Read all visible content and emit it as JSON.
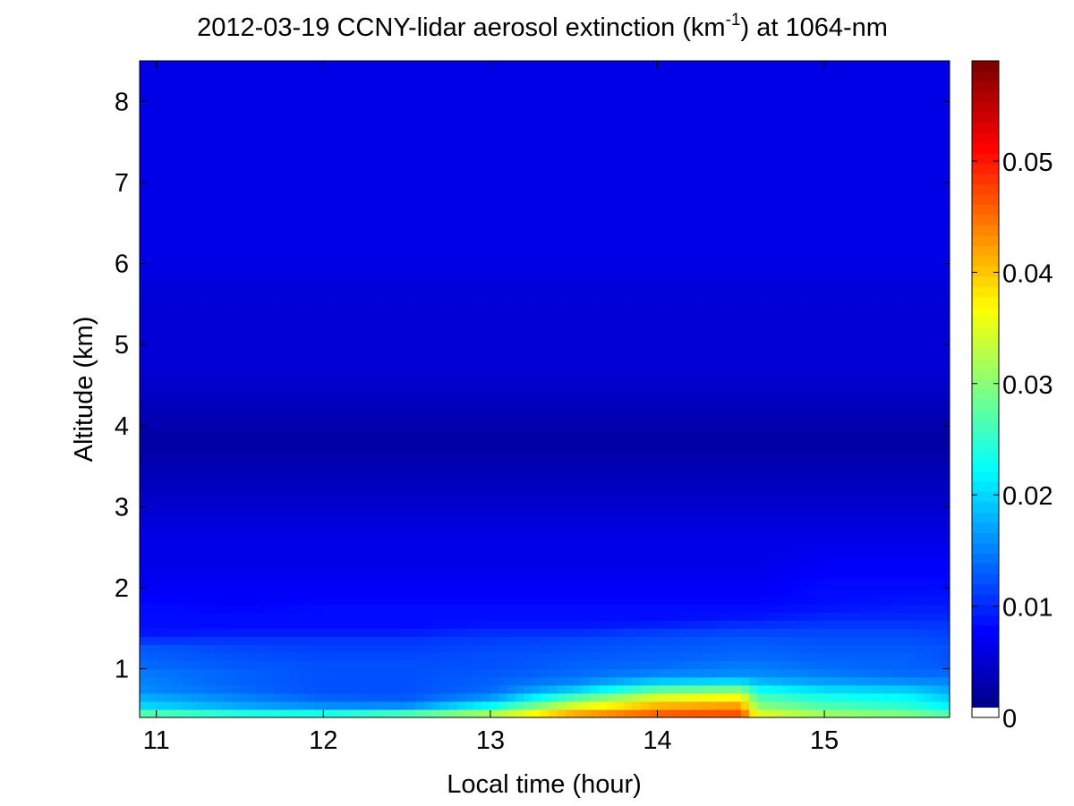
{
  "chart_data": {
    "type": "heatmap",
    "title_main": "2012-03-19 CCNY-lidar aerosol extinction (km",
    "title_sup": "-1",
    "title_end": ") at 1064-nm",
    "xlabel": "Local time (hour)",
    "ylabel": "Altitude (km)",
    "xlim": [
      10.9,
      15.75
    ],
    "ylim": [
      0.4,
      8.5
    ],
    "x_ticks": [
      11,
      12,
      13,
      14,
      15
    ],
    "y_ticks": [
      1,
      2,
      3,
      4,
      5,
      6,
      7,
      8
    ],
    "colorbar": {
      "colormap": "jet",
      "range": [
        0,
        0.059
      ],
      "ticks": [
        0,
        0.01,
        0.02,
        0.03,
        0.04,
        0.05
      ],
      "tick_labels": [
        "0",
        "0.01",
        "0.02",
        "0.03",
        "0.04",
        "0.05"
      ]
    },
    "profile_altitudes_km": [
      0.4,
      0.5,
      0.6,
      0.7,
      0.8,
      0.9,
      1.0,
      1.1,
      1.2,
      1.3,
      1.4,
      1.5,
      1.6,
      1.7,
      1.8,
      1.9,
      2.0,
      2.3,
      2.6,
      2.9,
      3.2,
      3.5,
      3.8,
      4.1,
      4.4,
      4.7,
      5.0,
      5.5,
      6.0,
      6.5,
      7.0,
      7.5,
      8.0,
      8.5
    ],
    "profile_times_hour": [
      10.9,
      11.5,
      12.0,
      12.5,
      13.0,
      13.5,
      14.0,
      14.5,
      14.6,
      15.0,
      15.5,
      15.75
    ],
    "extinction_km-1": [
      [
        0.033,
        0.03,
        0.03,
        0.034,
        0.037,
        0.045,
        0.048,
        0.049,
        0.038,
        0.034,
        0.032,
        0.03
      ],
      [
        0.021,
        0.018,
        0.017,
        0.018,
        0.026,
        0.038,
        0.044,
        0.045,
        0.032,
        0.028,
        0.026,
        0.023
      ],
      [
        0.019,
        0.016,
        0.014,
        0.013,
        0.018,
        0.031,
        0.038,
        0.04,
        0.028,
        0.025,
        0.023,
        0.02
      ],
      [
        0.016,
        0.014,
        0.012,
        0.012,
        0.014,
        0.022,
        0.032,
        0.034,
        0.025,
        0.022,
        0.021,
        0.018
      ],
      [
        0.015,
        0.013,
        0.012,
        0.012,
        0.013,
        0.016,
        0.022,
        0.024,
        0.02,
        0.018,
        0.017,
        0.016
      ],
      [
        0.015,
        0.013,
        0.012,
        0.012,
        0.013,
        0.014,
        0.016,
        0.016,
        0.016,
        0.015,
        0.014,
        0.014
      ],
      [
        0.014,
        0.013,
        0.012,
        0.012,
        0.012,
        0.013,
        0.014,
        0.015,
        0.015,
        0.014,
        0.013,
        0.013
      ],
      [
        0.013,
        0.012,
        0.012,
        0.012,
        0.012,
        0.013,
        0.013,
        0.014,
        0.014,
        0.013,
        0.013,
        0.012
      ],
      [
        0.013,
        0.012,
        0.011,
        0.011,
        0.012,
        0.012,
        0.013,
        0.013,
        0.013,
        0.013,
        0.013,
        0.012
      ],
      [
        0.012,
        0.011,
        0.011,
        0.011,
        0.011,
        0.012,
        0.012,
        0.013,
        0.013,
        0.012,
        0.012,
        0.012
      ],
      [
        0.009,
        0.01,
        0.01,
        0.01,
        0.011,
        0.011,
        0.012,
        0.012,
        0.012,
        0.012,
        0.012,
        0.011
      ],
      [
        0.008,
        0.008,
        0.008,
        0.008,
        0.009,
        0.009,
        0.01,
        0.011,
        0.011,
        0.011,
        0.011,
        0.011
      ],
      [
        0.008,
        0.008,
        0.008,
        0.008,
        0.008,
        0.008,
        0.008,
        0.009,
        0.009,
        0.01,
        0.01,
        0.01
      ],
      [
        0.008,
        0.008,
        0.008,
        0.008,
        0.008,
        0.008,
        0.008,
        0.008,
        0.008,
        0.009,
        0.009,
        0.009
      ],
      [
        0.008,
        0.007,
        0.008,
        0.008,
        0.008,
        0.008,
        0.008,
        0.008,
        0.008,
        0.008,
        0.009,
        0.009
      ],
      [
        0.007,
        0.007,
        0.007,
        0.007,
        0.007,
        0.007,
        0.007,
        0.007,
        0.007,
        0.008,
        0.008,
        0.008
      ],
      [
        0.007,
        0.007,
        0.007,
        0.007,
        0.007,
        0.007,
        0.007,
        0.007,
        0.007,
        0.008,
        0.008,
        0.008
      ],
      [
        0.006,
        0.006,
        0.006,
        0.006,
        0.006,
        0.006,
        0.006,
        0.006,
        0.006,
        0.007,
        0.007,
        0.007
      ],
      [
        0.006,
        0.006,
        0.006,
        0.006,
        0.006,
        0.006,
        0.006,
        0.006,
        0.006,
        0.006,
        0.006,
        0.006
      ],
      [
        0.005,
        0.005,
        0.005,
        0.005,
        0.005,
        0.005,
        0.005,
        0.005,
        0.005,
        0.005,
        0.005,
        0.005
      ],
      [
        0.004,
        0.004,
        0.004,
        0.004,
        0.004,
        0.004,
        0.004,
        0.004,
        0.004,
        0.004,
        0.004,
        0.004
      ],
      [
        0.003,
        0.003,
        0.003,
        0.003,
        0.003,
        0.003,
        0.003,
        0.003,
        0.003,
        0.003,
        0.003,
        0.003
      ],
      [
        0.002,
        0.002,
        0.002,
        0.002,
        0.002,
        0.002,
        0.002,
        0.002,
        0.002,
        0.002,
        0.002,
        0.002
      ],
      [
        0.003,
        0.003,
        0.003,
        0.003,
        0.003,
        0.003,
        0.003,
        0.003,
        0.003,
        0.003,
        0.003,
        0.003
      ],
      [
        0.004,
        0.004,
        0.004,
        0.004,
        0.004,
        0.004,
        0.004,
        0.004,
        0.004,
        0.004,
        0.004,
        0.004
      ],
      [
        0.005,
        0.005,
        0.005,
        0.005,
        0.005,
        0.005,
        0.005,
        0.005,
        0.005,
        0.005,
        0.005,
        0.005
      ],
      [
        0.005,
        0.005,
        0.005,
        0.005,
        0.005,
        0.005,
        0.005,
        0.005,
        0.005,
        0.005,
        0.005,
        0.005
      ],
      [
        0.005,
        0.005,
        0.005,
        0.005,
        0.005,
        0.005,
        0.005,
        0.005,
        0.005,
        0.005,
        0.005,
        0.005
      ],
      [
        0.006,
        0.006,
        0.006,
        0.006,
        0.006,
        0.006,
        0.006,
        0.006,
        0.006,
        0.006,
        0.006,
        0.006
      ],
      [
        0.006,
        0.006,
        0.006,
        0.006,
        0.006,
        0.006,
        0.006,
        0.006,
        0.006,
        0.006,
        0.006,
        0.006
      ],
      [
        0.006,
        0.006,
        0.006,
        0.006,
        0.006,
        0.006,
        0.006,
        0.006,
        0.006,
        0.006,
        0.006,
        0.006
      ],
      [
        0.006,
        0.006,
        0.006,
        0.006,
        0.006,
        0.006,
        0.006,
        0.006,
        0.006,
        0.006,
        0.006,
        0.006
      ],
      [
        0.006,
        0.006,
        0.006,
        0.006,
        0.006,
        0.006,
        0.006,
        0.006,
        0.006,
        0.006,
        0.006,
        0.006
      ],
      [
        0.006,
        0.006,
        0.006,
        0.006,
        0.006,
        0.006,
        0.006,
        0.006,
        0.006,
        0.006,
        0.006,
        0.006
      ]
    ]
  }
}
